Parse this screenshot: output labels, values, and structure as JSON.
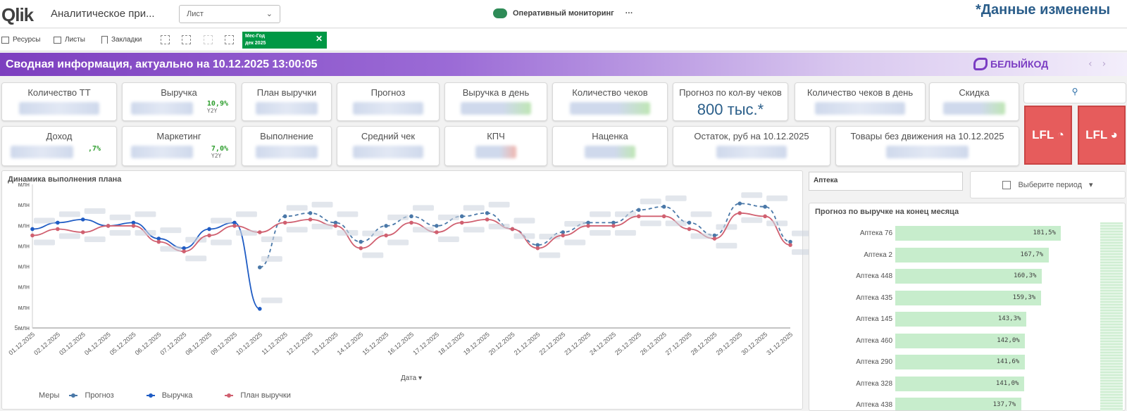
{
  "app": {
    "logo_text": "Qlik",
    "title": "Аналитическое при...",
    "sheet_dropdown": "Лист",
    "current_sheet": "Оперативный мониторинг",
    "more_icon": "ellipsis-icon",
    "watermark": "*Данные изменены"
  },
  "toolbar": {
    "resources": "Ресурсы",
    "sheets": "Листы",
    "bookmarks": "Закладки",
    "selection_field": "Мес-Год",
    "selection_value": "дек 2025",
    "selection_color": "#009845"
  },
  "banner": {
    "title": "Сводная информация, актуально на 10.12.2025 13:00:05",
    "brand": "БЕЛЫЙКОД",
    "gradient_start": "#7d3fbf"
  },
  "kpis_row1": [
    {
      "label": "Количество ТТ"
    },
    {
      "label": "Выручка",
      "delta": "10,9%",
      "delta_note": "Y2Y"
    },
    {
      "label": "План выручки"
    },
    {
      "label": "Прогноз"
    },
    {
      "label": "Выручка в день"
    },
    {
      "label": "Количество чеков"
    },
    {
      "label": "Прогноз по кол-ву чеков",
      "value": "800 тыс.*"
    },
    {
      "label": "Количество чеков в день"
    },
    {
      "label": "Скидка"
    }
  ],
  "kpis_row2": [
    {
      "label": "Доход",
      "delta": ",7%"
    },
    {
      "label": "Маркетинг",
      "delta": "7,0%",
      "delta_note": "Y2Y"
    },
    {
      "label": "Выполнение"
    },
    {
      "label": "Средний чек"
    },
    {
      "label": "КПЧ"
    },
    {
      "label": "Наценка"
    },
    {
      "label": "Остаток, руб на 10.12.2025"
    },
    {
      "label": "Товары без движения на 10.12.2025"
    }
  ],
  "lfl_buttons": [
    "LFL",
    "LFL"
  ],
  "lfl_color": "#e65c5c",
  "filters": {
    "pharmacy": "Аптека",
    "period_placeholder": "Выберите период"
  },
  "line_panel": {
    "title": "Динамика выполнения плана",
    "x_title": "Дата",
    "legend_title": "Меры",
    "bottom_tick": "5млн",
    "other_tick": "млн"
  },
  "chart_data": [
    {
      "type": "line",
      "title": "Динамика выполнения плана",
      "xlabel": "Дата",
      "x": [
        "01.12.2025",
        "02.12.2025",
        "03.12.2025",
        "04.12.2025",
        "05.12.2025",
        "06.12.2025",
        "07.12.2025",
        "08.12.2025",
        "09.12.2025",
        "10.12.2025",
        "11.12.2025",
        "12.12.2025",
        "13.12.2025",
        "14.12.2025",
        "15.12.2025",
        "16.12.2025",
        "17.12.2025",
        "18.12.2025",
        "19.12.2025",
        "20.12.2025",
        "21.12.2025",
        "22.12.2025",
        "23.12.2025",
        "24.12.2025",
        "25.12.2025",
        "26.12.2025",
        "27.12.2025",
        "28.12.2025",
        "29.12.2025",
        "30.12.2025",
        "31.12.2025"
      ],
      "series": [
        {
          "name": "Прогноз",
          "color": "#4a78a8",
          "style": "dashed",
          "values": [
            null,
            null,
            null,
            null,
            null,
            null,
            null,
            null,
            null,
            6.9,
            8.5,
            8.6,
            8.3,
            7.7,
            8.2,
            8.5,
            8.2,
            8.5,
            8.6,
            8.1,
            7.6,
            8.0,
            8.3,
            8.3,
            8.7,
            8.8,
            8.3,
            7.9,
            8.9,
            8.8,
            7.7
          ]
        },
        {
          "name": "Выручка",
          "color": "#1f5cc4",
          "style": "solid",
          "values": [
            8.1,
            8.3,
            8.4,
            8.2,
            8.3,
            7.8,
            7.5,
            8.1,
            8.3,
            5.6,
            null,
            null,
            null,
            null,
            null,
            null,
            null,
            null,
            null,
            null,
            null,
            null,
            null,
            null,
            null,
            null,
            null,
            null,
            null,
            null,
            null
          ]
        },
        {
          "name": "План выручки",
          "color": "#d06070",
          "style": "solid",
          "values": [
            7.9,
            8.1,
            8.0,
            8.2,
            8.2,
            7.7,
            7.4,
            7.9,
            8.2,
            8.0,
            8.3,
            8.4,
            8.2,
            7.5,
            7.9,
            8.3,
            8.0,
            8.3,
            8.4,
            8.1,
            7.5,
            7.9,
            8.2,
            8.2,
            8.5,
            8.5,
            8.1,
            7.8,
            8.6,
            8.5,
            7.6
          ]
        }
      ],
      "ylim": [
        5,
        9.5
      ],
      "grid": false,
      "legend": "bottom-left"
    },
    {
      "type": "bar",
      "orientation": "horizontal",
      "title": "Прогноз по выручке на конец месяца",
      "categories": [
        "Аптека 76",
        "Аптека 2",
        "Аптека 448",
        "Аптека 435",
        "Аптека 145",
        "Аптека 460",
        "Аптека 290",
        "Аптека 328",
        "Аптека 438"
      ],
      "values": [
        181.5,
        167.7,
        160.3,
        159.3,
        143.3,
        142.0,
        141.6,
        141.0,
        137.7
      ],
      "value_labels": [
        "181,5%",
        "167,7%",
        "160,3%",
        "159,3%",
        "143,3%",
        "142,0%",
        "141,6%",
        "141,0%",
        "137,7%"
      ],
      "xlim": [
        0,
        185
      ],
      "bar_color": "#c7edcc"
    }
  ]
}
